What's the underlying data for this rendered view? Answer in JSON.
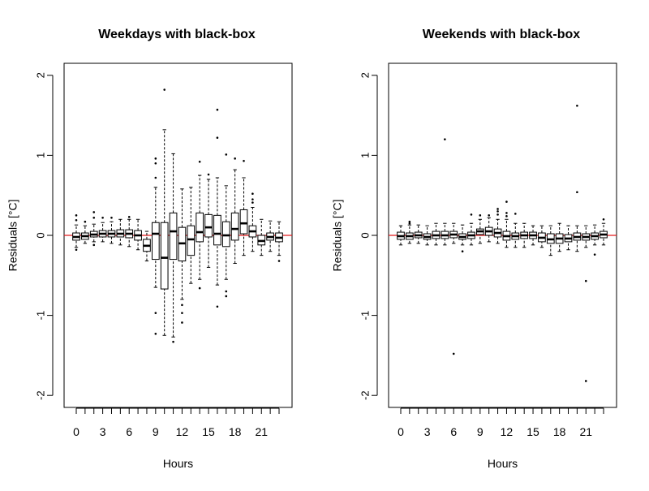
{
  "colors": {
    "background": "#ffffff",
    "axis": "#000000",
    "box_fill": "#ffffff",
    "median": "#000000",
    "reference_line": "#e31a1c"
  },
  "chart_data": [
    {
      "type": "boxplot",
      "title": "Weekdays with black-box",
      "xlabel": "Hours",
      "ylabel": "Residuals [°C]",
      "ylim": [
        -2.15,
        2.15
      ],
      "yticks": [
        -2,
        -1,
        0,
        1,
        2
      ],
      "ytick_labels": [
        "-2",
        "-1",
        "0",
        "1",
        "2"
      ],
      "xtick_labels": [
        "0",
        "3",
        "6",
        "9",
        "12",
        "15",
        "18",
        "21"
      ],
      "reference_line": 0,
      "categories": [
        "0",
        "1",
        "2",
        "3",
        "4",
        "5",
        "6",
        "7",
        "8",
        "9",
        "10",
        "11",
        "12",
        "13",
        "14",
        "15",
        "16",
        "17",
        "18",
        "19",
        "20",
        "21",
        "22",
        "23"
      ],
      "boxes": [
        {
          "hour": "0",
          "lo": -0.15,
          "q1": -0.06,
          "med": -0.02,
          "q3": 0.03,
          "hi": 0.13,
          "outliers": [
            0.25,
            0.19,
            -0.18
          ]
        },
        {
          "hour": "1",
          "lo": -0.1,
          "q1": -0.05,
          "med": -0.01,
          "q3": 0.03,
          "hi": 0.12,
          "outliers": [
            0.17
          ]
        },
        {
          "hour": "2",
          "lo": -0.08,
          "q1": -0.02,
          "med": 0.01,
          "q3": 0.05,
          "hi": 0.14,
          "outliers": [
            0.29,
            0.22,
            -0.12
          ]
        },
        {
          "hour": "3",
          "lo": -0.08,
          "q1": -0.02,
          "med": 0.02,
          "q3": 0.06,
          "hi": 0.16,
          "outliers": [
            0.22
          ]
        },
        {
          "hour": "4",
          "lo": -0.1,
          "q1": -0.02,
          "med": 0.02,
          "q3": 0.06,
          "hi": 0.17,
          "outliers": [
            0.22
          ]
        },
        {
          "hour": "5",
          "lo": -0.12,
          "q1": -0.02,
          "med": 0.02,
          "q3": 0.07,
          "hi": 0.2,
          "outliers": []
        },
        {
          "hour": "6",
          "lo": -0.14,
          "q1": -0.03,
          "med": 0.02,
          "q3": 0.07,
          "hi": 0.2,
          "outliers": [
            0.23
          ]
        },
        {
          "hour": "7",
          "lo": -0.18,
          "q1": -0.06,
          "med": 0.0,
          "q3": 0.06,
          "hi": 0.2,
          "outliers": []
        },
        {
          "hour": "8",
          "lo": -0.32,
          "q1": -0.2,
          "med": -0.13,
          "q3": -0.05,
          "hi": 0.05,
          "outliers": []
        },
        {
          "hour": "9",
          "lo": -0.65,
          "q1": -0.3,
          "med": 0.02,
          "q3": 0.16,
          "hi": 0.6,
          "outliers": [
            0.96,
            0.9,
            0.72,
            -0.97,
            -1.23
          ]
        },
        {
          "hour": "10",
          "lo": -1.25,
          "q1": -0.67,
          "med": -0.28,
          "q3": 0.16,
          "hi": 1.32,
          "outliers": [
            1.82
          ]
        },
        {
          "hour": "11",
          "lo": -1.27,
          "q1": -0.3,
          "med": 0.05,
          "q3": 0.28,
          "hi": 1.02,
          "outliers": [
            -1.33
          ]
        },
        {
          "hour": "12",
          "lo": -0.8,
          "q1": -0.32,
          "med": -0.1,
          "q3": 0.1,
          "hi": 0.58,
          "outliers": [
            -0.87,
            -0.97,
            -1.09
          ]
        },
        {
          "hour": "13",
          "lo": -0.6,
          "q1": -0.25,
          "med": -0.05,
          "q3": 0.12,
          "hi": 0.6,
          "outliers": []
        },
        {
          "hour": "14",
          "lo": -0.55,
          "q1": -0.08,
          "med": 0.04,
          "q3": 0.28,
          "hi": 0.75,
          "outliers": [
            0.92,
            -0.66
          ]
        },
        {
          "hour": "15",
          "lo": -0.4,
          "q1": -0.02,
          "med": 0.1,
          "q3": 0.26,
          "hi": 0.7,
          "outliers": [
            0.76
          ]
        },
        {
          "hour": "16",
          "lo": -0.62,
          "q1": -0.12,
          "med": 0.02,
          "q3": 0.25,
          "hi": 0.72,
          "outliers": [
            1.57,
            1.22,
            -0.89
          ]
        },
        {
          "hour": "17",
          "lo": -0.55,
          "q1": -0.14,
          "med": 0.0,
          "q3": 0.17,
          "hi": 0.62,
          "outliers": [
            1.01,
            -0.7,
            -0.76
          ]
        },
        {
          "hour": "18",
          "lo": -0.35,
          "q1": -0.06,
          "med": 0.08,
          "q3": 0.28,
          "hi": 0.82,
          "outliers": [
            0.96
          ]
        },
        {
          "hour": "19",
          "lo": -0.25,
          "q1": 0.02,
          "med": 0.15,
          "q3": 0.32,
          "hi": 0.72,
          "outliers": [
            0.93
          ]
        },
        {
          "hour": "20",
          "lo": -0.2,
          "q1": -0.02,
          "med": 0.05,
          "q3": 0.12,
          "hi": 0.35,
          "outliers": [
            0.52,
            0.45,
            0.41
          ]
        },
        {
          "hour": "21",
          "lo": -0.25,
          "q1": -0.12,
          "med": -0.07,
          "q3": 0.0,
          "hi": 0.2,
          "outliers": []
        },
        {
          "hour": "22",
          "lo": -0.2,
          "q1": -0.06,
          "med": -0.02,
          "q3": 0.03,
          "hi": 0.18,
          "outliers": []
        },
        {
          "hour": "23",
          "lo": -0.25,
          "q1": -0.08,
          "med": -0.03,
          "q3": 0.03,
          "hi": 0.17,
          "outliers": [
            -0.32
          ]
        }
      ]
    },
    {
      "type": "boxplot",
      "title": "Weekends with black-box",
      "xlabel": "Hours",
      "ylabel": "Residuals [°C]",
      "ylim": [
        -2.15,
        2.15
      ],
      "yticks": [
        -2,
        -1,
        0,
        1,
        2
      ],
      "ytick_labels": [
        "-2",
        "-1",
        "0",
        "1",
        "2"
      ],
      "xtick_labels": [
        "0",
        "3",
        "6",
        "9",
        "12",
        "15",
        "18",
        "21"
      ],
      "reference_line": 0,
      "categories": [
        "0",
        "1",
        "2",
        "3",
        "4",
        "5",
        "6",
        "7",
        "8",
        "9",
        "10",
        "11",
        "12",
        "13",
        "14",
        "15",
        "16",
        "17",
        "18",
        "19",
        "20",
        "21",
        "22",
        "23"
      ],
      "boxes": [
        {
          "hour": "0",
          "lo": -0.12,
          "q1": -0.05,
          "med": -0.01,
          "q3": 0.04,
          "hi": 0.12,
          "outliers": []
        },
        {
          "hour": "1",
          "lo": -0.1,
          "q1": -0.05,
          "med": -0.01,
          "q3": 0.03,
          "hi": 0.13,
          "outliers": [
            0.17,
            0.15
          ]
        },
        {
          "hour": "2",
          "lo": -0.1,
          "q1": -0.03,
          "med": 0.0,
          "q3": 0.04,
          "hi": 0.13,
          "outliers": []
        },
        {
          "hour": "3",
          "lo": -0.12,
          "q1": -0.05,
          "med": -0.02,
          "q3": 0.02,
          "hi": 0.12,
          "outliers": []
        },
        {
          "hour": "4",
          "lo": -0.12,
          "q1": -0.04,
          "med": 0.0,
          "q3": 0.05,
          "hi": 0.15,
          "outliers": []
        },
        {
          "hour": "5",
          "lo": -0.12,
          "q1": -0.04,
          "med": 0.0,
          "q3": 0.05,
          "hi": 0.15,
          "outliers": [
            1.2
          ]
        },
        {
          "hour": "6",
          "lo": -0.1,
          "q1": -0.03,
          "med": 0.01,
          "q3": 0.05,
          "hi": 0.15,
          "outliers": [
            -1.48
          ]
        },
        {
          "hour": "7",
          "lo": -0.12,
          "q1": -0.05,
          "med": -0.02,
          "q3": 0.02,
          "hi": 0.13,
          "outliers": [
            -0.2
          ]
        },
        {
          "hour": "8",
          "lo": -0.12,
          "q1": -0.04,
          "med": 0.0,
          "q3": 0.04,
          "hi": 0.15,
          "outliers": [
            0.26
          ]
        },
        {
          "hour": "9",
          "lo": -0.1,
          "q1": 0.01,
          "med": 0.05,
          "q3": 0.08,
          "hi": 0.2,
          "outliers": [
            0.25
          ]
        },
        {
          "hour": "10",
          "lo": -0.08,
          "q1": 0.0,
          "med": 0.05,
          "q3": 0.1,
          "hi": 0.22,
          "outliers": [
            0.25
          ]
        },
        {
          "hour": "11",
          "lo": -0.1,
          "q1": -0.02,
          "med": 0.03,
          "q3": 0.08,
          "hi": 0.2,
          "outliers": [
            0.33,
            0.3,
            0.26
          ]
        },
        {
          "hour": "12",
          "lo": -0.15,
          "q1": -0.06,
          "med": -0.01,
          "q3": 0.05,
          "hi": 0.2,
          "outliers": [
            0.42,
            0.28,
            0.24
          ]
        },
        {
          "hour": "13",
          "lo": -0.15,
          "q1": -0.05,
          "med": -0.01,
          "q3": 0.03,
          "hi": 0.15,
          "outliers": [
            0.27
          ]
        },
        {
          "hour": "14",
          "lo": -0.15,
          "q1": -0.04,
          "med": 0.0,
          "q3": 0.04,
          "hi": 0.15,
          "outliers": []
        },
        {
          "hour": "15",
          "lo": -0.12,
          "q1": -0.04,
          "med": 0.0,
          "q3": 0.04,
          "hi": 0.12,
          "outliers": []
        },
        {
          "hour": "16",
          "lo": -0.15,
          "q1": -0.08,
          "med": -0.03,
          "q3": 0.03,
          "hi": 0.12,
          "outliers": []
        },
        {
          "hour": "17",
          "lo": -0.25,
          "q1": -0.1,
          "med": -0.05,
          "q3": 0.02,
          "hi": 0.12,
          "outliers": []
        },
        {
          "hour": "18",
          "lo": -0.2,
          "q1": -0.1,
          "med": -0.04,
          "q3": 0.02,
          "hi": 0.15,
          "outliers": []
        },
        {
          "hour": "19",
          "lo": -0.18,
          "q1": -0.08,
          "med": -0.04,
          "q3": 0.01,
          "hi": 0.12,
          "outliers": []
        },
        {
          "hour": "20",
          "lo": -0.2,
          "q1": -0.06,
          "med": -0.02,
          "q3": 0.03,
          "hi": 0.12,
          "outliers": [
            1.62,
            0.54
          ]
        },
        {
          "hour": "21",
          "lo": -0.15,
          "q1": -0.06,
          "med": -0.02,
          "q3": 0.02,
          "hi": 0.12,
          "outliers": [
            -0.57,
            -1.82
          ]
        },
        {
          "hour": "22",
          "lo": -0.12,
          "q1": -0.05,
          "med": -0.01,
          "q3": 0.03,
          "hi": 0.13,
          "outliers": [
            -0.24
          ]
        },
        {
          "hour": "23",
          "lo": -0.12,
          "q1": -0.03,
          "med": 0.01,
          "q3": 0.05,
          "hi": 0.15,
          "outliers": [
            0.2
          ]
        }
      ]
    }
  ]
}
